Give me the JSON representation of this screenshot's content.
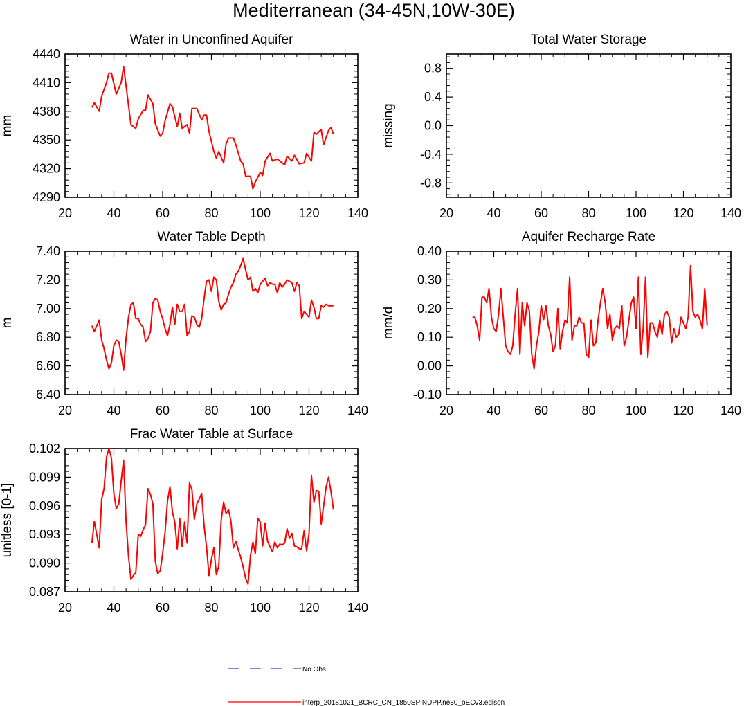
{
  "title": "Mediterranean (34-45N,10W-30E)",
  "legend": {
    "entries": [
      {
        "label": "No Obs",
        "style": "dashed",
        "color": "#3a3acc"
      },
      {
        "label": "interp_20181021_BCRC_CN_1850SPINUPP.ne30_oECv3.edison",
        "style": "solid",
        "color": "#ff0000"
      }
    ]
  },
  "chart_data": [
    {
      "type": "line",
      "title": "Water in Unconfined Aquifer",
      "ylabel": "mm",
      "xlabel": "",
      "xlim": [
        20,
        140
      ],
      "ylim": [
        4290,
        4440
      ],
      "xticks": [
        "20",
        "40",
        "60",
        "80",
        "100",
        "120",
        "140"
      ],
      "yticks": [
        "4290",
        "4320",
        "4350",
        "4380",
        "4410",
        "4440"
      ],
      "series": [
        {
          "name": "interp_20181021_BCRC_CN_1850SPINUPP.ne30_oECv3.edison",
          "color": "#ff0000",
          "x": [
            31,
            32,
            34,
            35,
            37,
            38,
            39,
            41,
            43,
            44,
            45,
            47,
            49,
            50,
            52,
            53,
            54,
            56,
            57,
            59,
            60,
            61,
            63,
            64,
            66,
            67,
            68,
            70,
            71,
            72,
            74,
            76,
            77,
            78,
            79,
            81,
            82,
            83,
            85,
            86,
            87,
            89,
            90,
            92,
            93,
            94,
            96,
            97,
            98,
            100,
            101,
            102,
            104,
            105,
            107,
            108,
            110,
            111,
            113,
            114,
            116,
            118,
            119,
            121,
            122,
            123,
            125,
            126,
            128,
            129,
            130
          ],
          "values": [
            4384,
            4389,
            4380,
            4396,
            4410,
            4420,
            4420,
            4398,
            4410,
            4427,
            4407,
            4366,
            4362,
            4372,
            4381,
            4381,
            4397,
            4388,
            4367,
            4354,
            4357,
            4370,
            4388,
            4385,
            4364,
            4378,
            4362,
            4366,
            4357,
            4383,
            4383,
            4371,
            4376,
            4376,
            4359,
            4338,
            4331,
            4338,
            4326,
            4346,
            4352,
            4352,
            4345,
            4328,
            4325,
            4312,
            4312,
            4299,
            4306,
            4316,
            4313,
            4328,
            4336,
            4328,
            4330,
            4328,
            4324,
            4333,
            4328,
            4334,
            4325,
            4326,
            4336,
            4328,
            4358,
            4356,
            4361,
            4345,
            4360,
            4363,
            4356
          ]
        }
      ]
    },
    {
      "type": "line",
      "title": "Total Water Storage",
      "ylabel": "missing",
      "xlabel": "",
      "xlim": [
        20,
        140
      ],
      "ylim": [
        -1.0,
        1.0
      ],
      "xticks": [
        "20",
        "40",
        "60",
        "80",
        "100",
        "120",
        "140"
      ],
      "yticks": [
        "-0.8",
        "-0.4",
        "0.0",
        "0.4",
        "0.8"
      ],
      "series": []
    },
    {
      "type": "line",
      "title": "Water Table Depth",
      "ylabel": "m",
      "xlabel": "",
      "xlim": [
        20,
        140
      ],
      "ylim": [
        6.4,
        7.4
      ],
      "xticks": [
        "20",
        "40",
        "60",
        "80",
        "100",
        "120",
        "140"
      ],
      "yticks": [
        "6.40",
        "6.60",
        "6.80",
        "7.00",
        "7.20",
        "7.40"
      ],
      "series": [
        {
          "name": "interp_20181021_BCRC_CN_1850SPINUPP.ne30_oECv3.edison",
          "color": "#ff0000",
          "x": [
            31,
            32,
            34,
            35,
            36,
            37,
            38,
            39,
            40,
            41,
            42,
            43,
            44,
            45,
            46,
            47,
            48,
            49,
            50,
            51,
            52,
            53,
            54,
            55,
            56,
            57,
            58,
            59,
            60,
            61,
            62,
            63,
            64,
            65,
            66,
            67,
            68,
            69,
            70,
            71,
            72,
            73,
            74,
            75,
            76,
            77,
            78,
            79,
            80,
            81,
            82,
            83,
            84,
            85,
            86,
            87,
            88,
            89,
            90,
            91,
            92,
            93,
            94,
            95,
            96,
            97,
            98,
            99,
            100,
            101,
            102,
            103,
            104,
            105,
            106,
            107,
            108,
            109,
            110,
            111,
            112,
            113,
            114,
            115,
            116,
            117,
            118,
            119,
            120,
            121,
            122,
            123,
            124,
            125,
            126,
            127,
            128,
            129,
            130
          ],
          "values": [
            6.88,
            6.84,
            6.92,
            6.78,
            6.72,
            6.64,
            6.58,
            6.62,
            6.74,
            6.78,
            6.77,
            6.68,
            6.57,
            6.79,
            6.94,
            7.03,
            7.04,
            6.93,
            6.93,
            6.89,
            6.87,
            6.77,
            6.79,
            6.84,
            7.04,
            7.07,
            7.06,
            6.98,
            6.93,
            6.86,
            6.81,
            6.89,
            7.01,
            6.89,
            7.03,
            6.98,
            6.98,
            7.03,
            6.81,
            6.84,
            6.95,
            6.94,
            6.89,
            6.87,
            6.93,
            7.07,
            7.19,
            7.2,
            7.12,
            7.22,
            7.2,
            7.05,
            6.99,
            7.03,
            7.04,
            7.1,
            7.15,
            7.18,
            7.24,
            7.26,
            7.3,
            7.35,
            7.27,
            7.2,
            7.22,
            7.12,
            7.14,
            7.11,
            7.17,
            7.19,
            7.21,
            7.16,
            7.18,
            7.17,
            7.17,
            7.11,
            7.18,
            7.15,
            7.17,
            7.2,
            7.19,
            7.18,
            7.12,
            7.18,
            7.16,
            6.93,
            6.98,
            6.96,
            6.94,
            7.06,
            7.01,
            6.93,
            6.93,
            7.02,
            7.01,
            7.03,
            7.02,
            7.02,
            7.02
          ]
        }
      ]
    },
    {
      "type": "line",
      "title": "Aquifer Recharge Rate",
      "ylabel": "mm/d",
      "xlabel": "",
      "xlim": [
        20,
        140
      ],
      "ylim": [
        -0.1,
        0.4
      ],
      "xticks": [
        "20",
        "40",
        "60",
        "80",
        "100",
        "120",
        "140"
      ],
      "yticks": [
        "-0.10",
        "0.00",
        "0.10",
        "0.20",
        "0.30",
        "0.40"
      ],
      "series": [
        {
          "name": "interp_20181021_BCRC_CN_1850SPINUPP.ne30_oECv3.edison",
          "color": "#ff0000",
          "x": [
            31,
            32,
            33,
            34,
            35,
            36,
            37,
            38,
            39,
            40,
            41,
            42,
            43,
            44,
            45,
            46,
            47,
            48,
            49,
            50,
            51,
            52,
            53,
            54,
            55,
            56,
            57,
            58,
            59,
            60,
            61,
            62,
            63,
            64,
            65,
            66,
            67,
            68,
            69,
            70,
            71,
            72,
            73,
            74,
            75,
            76,
            77,
            78,
            79,
            80,
            81,
            82,
            83,
            84,
            85,
            86,
            87,
            88,
            89,
            90,
            91,
            92,
            93,
            94,
            95,
            96,
            97,
            98,
            99,
            100,
            101,
            102,
            103,
            104,
            105,
            106,
            107,
            108,
            109,
            110,
            111,
            112,
            113,
            114,
            115,
            116,
            117,
            118,
            119,
            120,
            121,
            122,
            123,
            124,
            125,
            126,
            127,
            128,
            129,
            130
          ],
          "values": [
            0.17,
            0.17,
            0.14,
            0.09,
            0.24,
            0.24,
            0.22,
            0.27,
            0.17,
            0.13,
            0.12,
            0.18,
            0.27,
            0.17,
            0.07,
            0.05,
            0.04,
            0.07,
            0.18,
            0.27,
            0.04,
            0.22,
            0.14,
            0.22,
            0.19,
            0.04,
            -0.01,
            0.07,
            0.12,
            0.21,
            0.16,
            0.21,
            0.14,
            0.11,
            0.05,
            0.07,
            0.2,
            0.06,
            0.12,
            0.16,
            0.15,
            0.31,
            0.09,
            0.14,
            0.14,
            0.17,
            0.15,
            0.15,
            0.04,
            0.03,
            0.16,
            0.07,
            0.08,
            0.16,
            0.22,
            0.27,
            0.22,
            0.13,
            0.18,
            0.09,
            0.13,
            0.14,
            0.13,
            0.21,
            0.07,
            0.1,
            0.16,
            0.22,
            0.24,
            0.13,
            0.31,
            0.04,
            0.13,
            0.31,
            0.03,
            0.15,
            0.15,
            0.12,
            0.1,
            0.16,
            0.11,
            0.18,
            0.19,
            0.17,
            0.08,
            0.13,
            0.1,
            0.11,
            0.17,
            0.15,
            0.13,
            0.17,
            0.35,
            0.19,
            0.17,
            0.18,
            0.16,
            0.13,
            0.27,
            0.14
          ]
        }
      ]
    },
    {
      "type": "line",
      "title": "Frac Water Table at Surface",
      "ylabel": "unitless [0-1]",
      "xlabel": "",
      "xlim": [
        20,
        140
      ],
      "ylim": [
        0.087,
        0.102
      ],
      "xticks": [
        "20",
        "40",
        "60",
        "80",
        "100",
        "120",
        "140"
      ],
      "yticks": [
        "0.087",
        "0.090",
        "0.093",
        "0.096",
        "0.099",
        "0.102"
      ],
      "series": [
        {
          "name": "interp_20181021_BCRC_CN_1850SPINUPP.ne30_oECv3.edison",
          "color": "#ff0000",
          "x": [
            31,
            32,
            34,
            35,
            36,
            37,
            38,
            39,
            40,
            41,
            42,
            43,
            44,
            45,
            46,
            47,
            48,
            49,
            50,
            51,
            52,
            53,
            54,
            55,
            56,
            57,
            58,
            59,
            60,
            61,
            62,
            63,
            64,
            65,
            66,
            67,
            68,
            69,
            70,
            71,
            72,
            73,
            74,
            75,
            76,
            77,
            78,
            79,
            80,
            81,
            82,
            83,
            84,
            85,
            86,
            87,
            88,
            89,
            90,
            91,
            92,
            93,
            94,
            95,
            96,
            97,
            98,
            99,
            100,
            101,
            102,
            103,
            104,
            105,
            106,
            107,
            108,
            109,
            110,
            111,
            112,
            113,
            114,
            115,
            116,
            117,
            118,
            119,
            120,
            121,
            122,
            123,
            124,
            125,
            126,
            127,
            128,
            129,
            130
          ],
          "values": [
            0.0921,
            0.0944,
            0.0916,
            0.0967,
            0.0978,
            0.1011,
            0.102,
            0.101,
            0.0973,
            0.0957,
            0.0962,
            0.0986,
            0.1008,
            0.0944,
            0.0907,
            0.0883,
            0.0887,
            0.089,
            0.093,
            0.0928,
            0.0935,
            0.094,
            0.0978,
            0.0972,
            0.0962,
            0.0902,
            0.0889,
            0.0892,
            0.091,
            0.0932,
            0.0965,
            0.098,
            0.0954,
            0.0943,
            0.0915,
            0.0947,
            0.0917,
            0.0943,
            0.0921,
            0.0984,
            0.0977,
            0.0946,
            0.0962,
            0.0967,
            0.0973,
            0.0939,
            0.0917,
            0.0887,
            0.0904,
            0.0916,
            0.0888,
            0.0897,
            0.0945,
            0.0964,
            0.0952,
            0.0956,
            0.0944,
            0.0916,
            0.0923,
            0.0914,
            0.0906,
            0.0896,
            0.0884,
            0.0878,
            0.0908,
            0.0922,
            0.091,
            0.0947,
            0.0943,
            0.0918,
            0.0942,
            0.0923,
            0.0917,
            0.0912,
            0.0922,
            0.0916,
            0.092,
            0.0919,
            0.0921,
            0.0936,
            0.0926,
            0.0931,
            0.0918,
            0.0917,
            0.0915,
            0.0915,
            0.0934,
            0.0913,
            0.0931,
            0.0992,
            0.0964,
            0.0976,
            0.0975,
            0.0941,
            0.096,
            0.098,
            0.099,
            0.0975,
            0.0956
          ]
        }
      ]
    }
  ]
}
